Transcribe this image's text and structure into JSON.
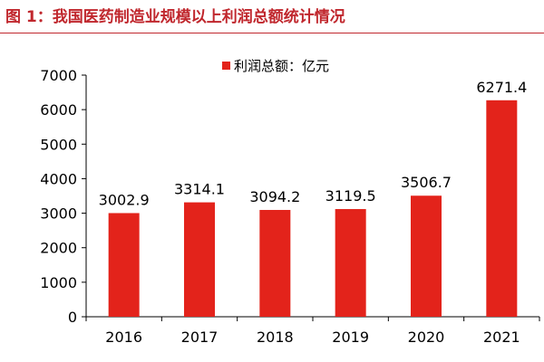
{
  "figure_title": "图 1：我国医药制造业规模以上利润总额统计情况",
  "colors": {
    "bar": "#e3231b",
    "title": "#c0272d",
    "axis": "#000000"
  },
  "chart_data": {
    "type": "bar",
    "categories": [
      "2016",
      "2017",
      "2018",
      "2019",
      "2020",
      "2021"
    ],
    "series": [
      {
        "name": "利润总额：亿元",
        "values": [
          3002.9,
          3314.1,
          3094.2,
          3119.5,
          3506.7,
          6271.4
        ]
      }
    ],
    "data_labels": [
      "3002.9",
      "3314.1",
      "3094.2",
      "3119.5",
      "3506.7",
      "6271.4"
    ],
    "yticks": [
      "0",
      "1000",
      "2000",
      "3000",
      "4000",
      "5000",
      "6000",
      "7000"
    ],
    "ylim": [
      0,
      7000
    ],
    "grid": false,
    "legend_position": "top-center"
  }
}
